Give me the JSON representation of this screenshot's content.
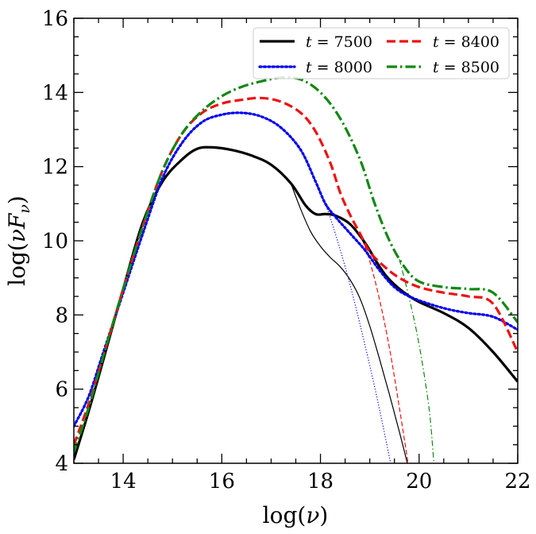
{
  "chart_data": {
    "type": "line",
    "title": "",
    "xlabel": "log(ν)",
    "ylabel": "log(νFν)",
    "xlim": [
      13,
      22
    ],
    "ylim": [
      4,
      16
    ],
    "x_ticks": [
      14,
      16,
      18,
      20,
      22
    ],
    "x_tick_labels": [
      "14",
      "16",
      "18",
      "20",
      "22"
    ],
    "y_ticks": [
      4,
      6,
      8,
      10,
      12,
      14,
      16
    ],
    "y_tick_labels": [
      "4",
      "6",
      "8",
      "10",
      "12",
      "14",
      "16"
    ],
    "grid": false,
    "legend_position": "top-right",
    "legend_columns": 2,
    "series": [
      {
        "name": "t = 7500",
        "legend_var": "t",
        "legend_eq": "= 7500",
        "color": "#000000",
        "style": "solid",
        "total": [
          [
            13.0,
            4.1
          ],
          [
            13.3,
            5.4
          ],
          [
            13.6,
            6.8
          ],
          [
            14.0,
            8.7
          ],
          [
            14.4,
            10.5
          ],
          [
            14.8,
            11.6
          ],
          [
            15.2,
            12.2
          ],
          [
            15.5,
            12.48
          ],
          [
            15.8,
            12.52
          ],
          [
            16.2,
            12.45
          ],
          [
            16.6,
            12.3
          ],
          [
            17.0,
            12.05
          ],
          [
            17.4,
            11.55
          ],
          [
            17.7,
            10.95
          ],
          [
            17.9,
            10.72
          ],
          [
            18.1,
            10.72
          ],
          [
            18.3,
            10.68
          ],
          [
            18.6,
            10.45
          ],
          [
            18.9,
            9.95
          ],
          [
            19.2,
            9.3
          ],
          [
            19.4,
            8.95
          ],
          [
            19.7,
            8.6
          ],
          [
            20.0,
            8.35
          ],
          [
            20.5,
            8.05
          ],
          [
            21.0,
            7.65
          ],
          [
            21.5,
            7.0
          ],
          [
            22.0,
            6.2
          ]
        ],
        "thermal": [
          [
            17.4,
            11.55
          ],
          [
            17.6,
            10.85
          ],
          [
            17.8,
            10.25
          ],
          [
            18.0,
            9.85
          ],
          [
            18.2,
            9.55
          ],
          [
            18.4,
            9.3
          ],
          [
            18.6,
            8.95
          ],
          [
            18.8,
            8.45
          ],
          [
            19.0,
            7.7
          ],
          [
            19.2,
            6.8
          ],
          [
            19.4,
            5.85
          ],
          [
            19.6,
            4.85
          ],
          [
            19.8,
            3.8
          ]
        ]
      },
      {
        "name": "t = 8000",
        "legend_var": "t",
        "legend_eq": "= 8000",
        "color": "#0000ee",
        "style": "dotted",
        "total": [
          [
            13.0,
            5.0
          ],
          [
            13.3,
            5.8
          ],
          [
            13.6,
            7.0
          ],
          [
            14.0,
            8.6
          ],
          [
            14.4,
            10.2
          ],
          [
            14.8,
            11.7
          ],
          [
            15.2,
            12.65
          ],
          [
            15.6,
            13.2
          ],
          [
            16.0,
            13.4
          ],
          [
            16.4,
            13.45
          ],
          [
            16.8,
            13.35
          ],
          [
            17.2,
            13.05
          ],
          [
            17.6,
            12.45
          ],
          [
            17.9,
            11.6
          ],
          [
            18.1,
            11.0
          ],
          [
            18.3,
            10.65
          ],
          [
            18.6,
            10.2
          ],
          [
            18.9,
            9.75
          ],
          [
            19.2,
            9.2
          ],
          [
            19.5,
            8.75
          ],
          [
            19.8,
            8.5
          ],
          [
            20.2,
            8.3
          ],
          [
            20.6,
            8.15
          ],
          [
            21.0,
            8.05
          ],
          [
            21.5,
            7.95
          ],
          [
            22.0,
            7.6
          ]
        ],
        "thermal": [
          [
            17.9,
            11.6
          ],
          [
            18.1,
            11.0
          ],
          [
            18.3,
            10.2
          ],
          [
            18.5,
            9.3
          ],
          [
            18.7,
            8.3
          ],
          [
            18.9,
            7.2
          ],
          [
            19.1,
            6.05
          ],
          [
            19.3,
            4.8
          ],
          [
            19.5,
            3.5
          ]
        ]
      },
      {
        "name": "t = 8400",
        "legend_var": "t",
        "legend_eq": "= 8400",
        "color": "#ee1111",
        "style": "dashed",
        "total": [
          [
            13.0,
            4.5
          ],
          [
            13.3,
            5.6
          ],
          [
            13.6,
            6.9
          ],
          [
            14.0,
            8.7
          ],
          [
            14.4,
            10.4
          ],
          [
            14.8,
            11.9
          ],
          [
            15.2,
            12.9
          ],
          [
            15.6,
            13.45
          ],
          [
            16.0,
            13.7
          ],
          [
            16.4,
            13.8
          ],
          [
            16.8,
            13.85
          ],
          [
            17.2,
            13.75
          ],
          [
            17.6,
            13.45
          ],
          [
            17.9,
            12.95
          ],
          [
            18.2,
            12.1
          ],
          [
            18.4,
            11.3
          ],
          [
            18.6,
            10.7
          ],
          [
            18.8,
            10.2
          ],
          [
            19.0,
            9.7
          ],
          [
            19.3,
            9.3
          ],
          [
            19.6,
            9.0
          ],
          [
            20.0,
            8.75
          ],
          [
            20.5,
            8.6
          ],
          [
            21.0,
            8.5
          ],
          [
            21.5,
            8.3
          ],
          [
            22.0,
            7.0
          ]
        ],
        "thermal": [
          [
            18.8,
            10.2
          ],
          [
            19.0,
            9.45
          ],
          [
            19.2,
            8.4
          ],
          [
            19.4,
            7.1
          ],
          [
            19.6,
            5.5
          ],
          [
            19.8,
            3.8
          ]
        ]
      },
      {
        "name": "t = 8500",
        "legend_var": "t",
        "legend_eq": "= 8500",
        "color": "#118811",
        "style": "dashdot",
        "total": [
          [
            13.0,
            4.3
          ],
          [
            13.3,
            5.5
          ],
          [
            13.6,
            6.9
          ],
          [
            14.0,
            8.7
          ],
          [
            14.4,
            10.4
          ],
          [
            14.8,
            11.9
          ],
          [
            15.2,
            12.9
          ],
          [
            15.6,
            13.5
          ],
          [
            16.0,
            13.9
          ],
          [
            16.4,
            14.15
          ],
          [
            16.8,
            14.3
          ],
          [
            17.2,
            14.4
          ],
          [
            17.6,
            14.35
          ],
          [
            18.0,
            14.0
          ],
          [
            18.4,
            13.3
          ],
          [
            18.8,
            12.2
          ],
          [
            19.1,
            11.0
          ],
          [
            19.4,
            10.0
          ],
          [
            19.7,
            9.3
          ],
          [
            20.0,
            8.9
          ],
          [
            20.5,
            8.75
          ],
          [
            21.0,
            8.7
          ],
          [
            21.5,
            8.6
          ],
          [
            22.0,
            7.8
          ]
        ],
        "thermal": [
          [
            19.6,
            9.5
          ],
          [
            19.8,
            8.45
          ],
          [
            20.0,
            7.2
          ],
          [
            20.2,
            5.5
          ],
          [
            20.3,
            4.0
          ]
        ]
      }
    ]
  }
}
